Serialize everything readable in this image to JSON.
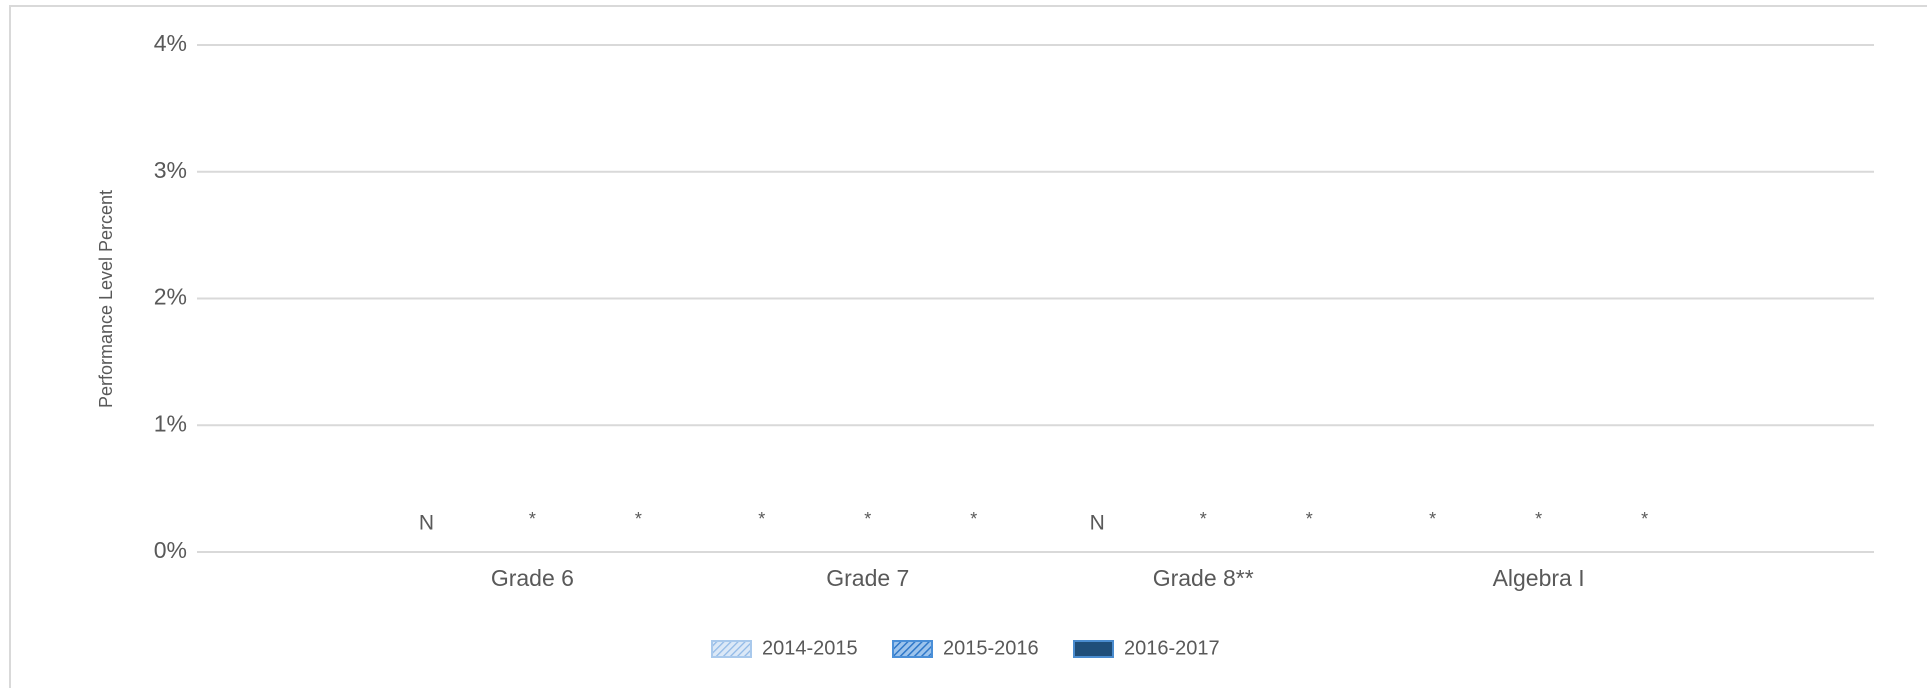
{
  "chart_data": {
    "type": "bar",
    "y_label": "Performance Level Percent",
    "categories": [
      "Grade 6",
      "Grade 7",
      "Grade 8**",
      "Algebra I"
    ],
    "series": [
      {
        "name": "2014-2015",
        "color": "#a9c9ec",
        "values": [
          null,
          null,
          null,
          null
        ],
        "value_labels": [
          "N",
          "*",
          "N",
          "*"
        ]
      },
      {
        "name": "2015-2016",
        "color": "#4a8fd8",
        "values": [
          null,
          null,
          null,
          null
        ],
        "value_labels": [
          "*",
          "*",
          "*",
          "*"
        ]
      },
      {
        "name": "2016-2017",
        "color": "#1f4e79",
        "values": [
          null,
          null,
          null,
          null
        ],
        "value_labels": [
          "*",
          "*",
          "*",
          "*"
        ]
      }
    ],
    "ylim": [
      0,
      4
    ],
    "yticks": [
      {
        "value": 0,
        "label": "0%"
      },
      {
        "value": 1,
        "label": "1%"
      },
      {
        "value": 2,
        "label": "2%"
      },
      {
        "value": 3,
        "label": "3%"
      },
      {
        "value": 4,
        "label": "4%"
      }
    ],
    "grid": true,
    "legend": "bottom"
  }
}
